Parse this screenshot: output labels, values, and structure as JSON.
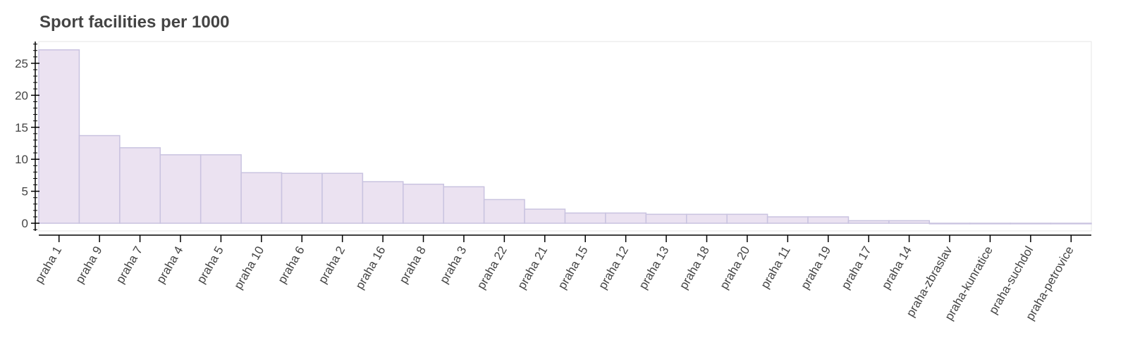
{
  "chart_data": {
    "type": "bar",
    "title": "Sport facilities per 1000",
    "xlabel": "",
    "ylabel": "",
    "ylim": [
      -1.2,
      28.4
    ],
    "yticks": [
      0,
      5,
      10,
      15,
      20,
      25
    ],
    "grid": false,
    "legend": "none",
    "categories": [
      "praha 1",
      "praha 9",
      "praha 7",
      "praha 4",
      "praha 5",
      "praha 10",
      "praha 6",
      "praha 2",
      "praha 16",
      "praha 8",
      "praha 3",
      "praha 22",
      "praha 21",
      "praha 15",
      "praha 12",
      "praha 13",
      "praha 18",
      "praha 20",
      "praha 11",
      "praha 19",
      "praha 17",
      "praha 14",
      "praha-zbraslav",
      "praha-kunratice",
      "praha-suchdol",
      "praha-petrovice"
    ],
    "values": [
      27.1,
      13.7,
      11.8,
      10.7,
      10.7,
      7.9,
      7.8,
      7.8,
      6.5,
      6.1,
      5.7,
      3.7,
      2.2,
      1.6,
      1.6,
      1.4,
      1.4,
      1.4,
      1.0,
      1.0,
      0.4,
      0.4,
      0.0,
      0.0,
      0.0,
      0.0
    ],
    "colors": {
      "bar_fill": "#ebe2f1",
      "bar_stroke": "#c9c3e0",
      "axis": "#000000",
      "text": "#444444"
    }
  }
}
